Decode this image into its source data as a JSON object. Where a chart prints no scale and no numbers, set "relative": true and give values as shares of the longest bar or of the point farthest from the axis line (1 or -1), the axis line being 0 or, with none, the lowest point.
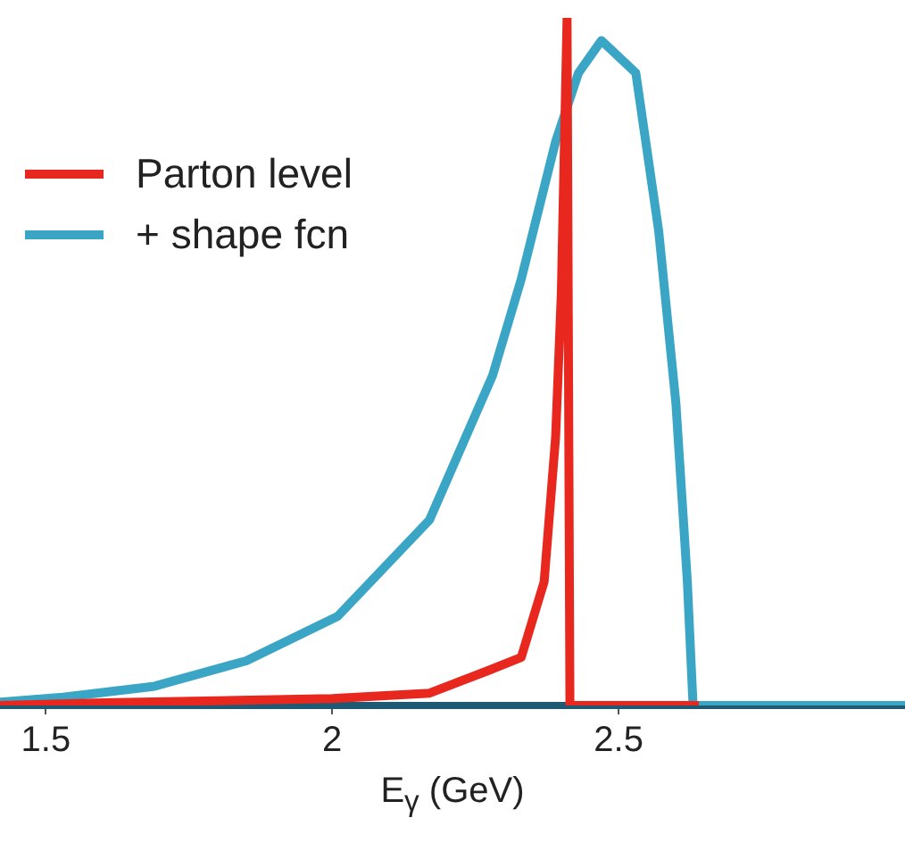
{
  "chart_data": {
    "type": "line",
    "relative": true,
    "xlabel": "E$_{γ}$ (GeV)",
    "xlim": [
      1.42,
      3.0
    ],
    "xticks": [
      1.5,
      2,
      2.5
    ],
    "grid": false,
    "legend": "top left",
    "marker": "none",
    "line_style": "solid",
    "series": [
      {
        "name": "Parton level",
        "color": "#e8281e",
        "x": [
          1.42,
          1.6,
          2.0,
          2.17,
          2.27,
          2.33,
          2.37,
          2.39,
          2.4,
          2.41,
          2.415,
          2.64
        ],
        "values": [
          0,
          0.004,
          0.01,
          0.018,
          0.05,
          0.07,
          0.18,
          0.39,
          0.6,
          1.0,
          0,
          0
        ]
      },
      {
        "name": "+ shape fcn",
        "color": "#3aa5c4",
        "x": [
          1.42,
          1.53,
          1.69,
          1.85,
          2.01,
          2.17,
          2.28,
          2.33,
          2.39,
          2.43,
          2.47,
          2.53,
          2.57,
          2.6,
          2.62,
          2.63,
          3.0
        ],
        "values": [
          0.005,
          0.012,
          0.028,
          0.065,
          0.13,
          0.27,
          0.48,
          0.62,
          0.82,
          0.92,
          0.967,
          0.92,
          0.69,
          0.44,
          0.18,
          0,
          0
        ]
      }
    ]
  }
}
